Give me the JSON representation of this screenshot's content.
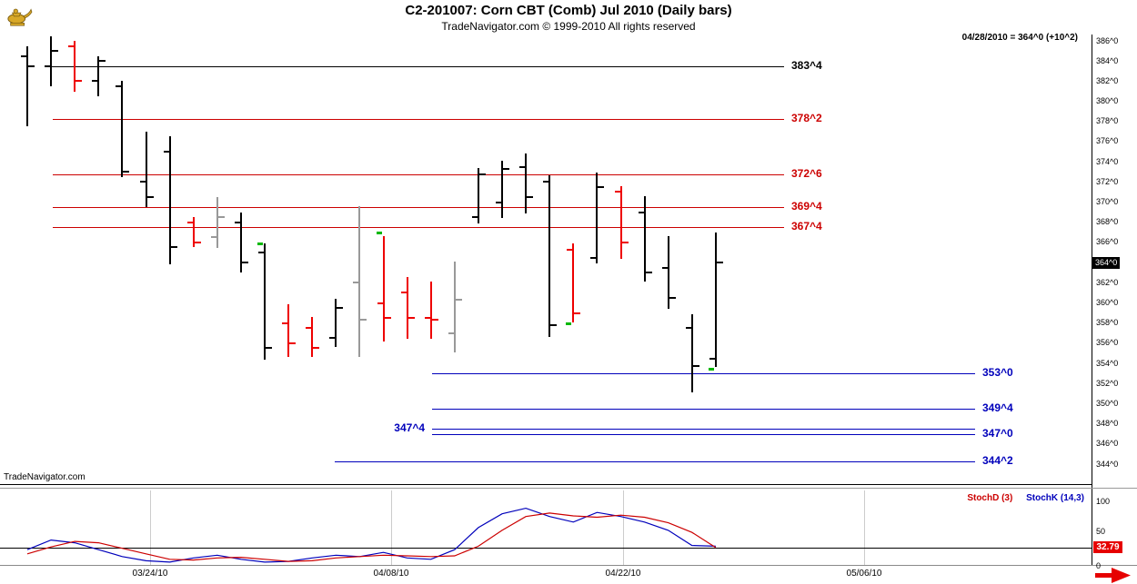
{
  "header": {
    "title": "C2-201007:  Corn CBT (Comb) Jul 2010  (Daily bars)",
    "copyright": "TradeNavigator.com © 1999-2010 All rights reserved",
    "quote": "04/28/2010 = 364^0 (+10^2)"
  },
  "watermark": "TradeNavigator.com",
  "colors": {
    "bar_black": "#000000",
    "bar_red": "#ee0000",
    "bar_gray": "#999999",
    "signal_green": "#00b800",
    "level_black": "#000000",
    "level_red": "#cc0000",
    "level_blue": "#0000bb",
    "stoch_d": "#cc0000",
    "stoch_k": "#0000bb",
    "current_price_bg": "#000000",
    "value_box_bg": "#e60000",
    "arrow_red": "#e60000",
    "logo_gold": "#d8a828"
  },
  "price_axis": {
    "max": 386,
    "min": 344,
    "step": 2,
    "current": "364^0",
    "labels": [
      "386^0",
      "384^0",
      "382^0",
      "380^0",
      "378^0",
      "376^0",
      "374^0",
      "372^0",
      "370^0",
      "368^0",
      "366^0",
      "364^0",
      "362^0",
      "360^0",
      "358^0",
      "356^0",
      "354^0",
      "352^0",
      "350^0",
      "348^0",
      "346^0",
      "344^0"
    ]
  },
  "chart_data": [
    {
      "type": "ohlc-bar",
      "title": "C2-201007 Corn CBT (Comb) Jul 2010 Daily bars",
      "y_axis": {
        "min": 344,
        "max": 386,
        "step": 2
      },
      "x_axis": {
        "tick_labels": [
          "03/24/10",
          "04/08/10",
          "04/22/10",
          "05/06/10"
        ],
        "tick_x": [
          165,
          430,
          685,
          950
        ]
      },
      "levels": [
        {
          "label": "383^4",
          "value": 383.5,
          "color_key": "level_black",
          "side": "right",
          "x1": 55,
          "x2": 862
        },
        {
          "label": "378^2",
          "value": 378.25,
          "color_key": "level_red",
          "side": "right",
          "x1": 58,
          "x2": 862
        },
        {
          "label": "372^6",
          "value": 372.75,
          "color_key": "level_red",
          "side": "right",
          "x1": 58,
          "x2": 862
        },
        {
          "label": "369^4",
          "value": 369.5,
          "color_key": "level_red",
          "side": "right",
          "x1": 58,
          "x2": 862
        },
        {
          "label": "367^4",
          "value": 367.5,
          "color_key": "level_red",
          "side": "right",
          "x1": 58,
          "x2": 862
        },
        {
          "label": "353^0",
          "value": 353.0,
          "color_key": "level_blue",
          "side": "right",
          "x1": 475,
          "x2": 1072
        },
        {
          "label": "349^4",
          "value": 349.5,
          "color_key": "level_blue",
          "side": "right",
          "x1": 475,
          "x2": 1072
        },
        {
          "label": "347^4",
          "value": 347.5,
          "color_key": "level_blue",
          "side": "left",
          "x1": 475,
          "x2": 1072
        },
        {
          "label": "347^0",
          "value": 347.0,
          "color_key": "level_blue",
          "side": "right",
          "x1": 475,
          "x2": 1072
        },
        {
          "label": "344^2",
          "value": 344.25,
          "color_key": "level_blue",
          "side": "right",
          "x1": 368,
          "x2": 1072
        }
      ],
      "bars": [
        {
          "o": 384.5,
          "h": 385.5,
          "l": 377.5,
          "c": 383.5,
          "color": "black"
        },
        {
          "o": 383.5,
          "h": 386.5,
          "l": 381.5,
          "c": 385.0,
          "color": "black"
        },
        {
          "o": 385.5,
          "h": 386.0,
          "l": 381.0,
          "c": 382.0,
          "color": "red"
        },
        {
          "o": 382.0,
          "h": 384.5,
          "l": 380.5,
          "c": 384.0,
          "color": "black"
        },
        {
          "o": 381.5,
          "h": 382.0,
          "l": 372.5,
          "c": 373.0,
          "color": "black"
        },
        {
          "o": 372.0,
          "h": 377.0,
          "l": 369.5,
          "c": 370.5,
          "color": "black"
        },
        {
          "o": 375.0,
          "h": 376.5,
          "l": 363.8,
          "c": 365.5,
          "color": "black"
        },
        {
          "o": 368.0,
          "h": 368.5,
          "l": 365.5,
          "c": 366.0,
          "color": "red"
        },
        {
          "o": 366.5,
          "h": 370.5,
          "l": 365.5,
          "c": 368.5,
          "color": "gray"
        },
        {
          "o": 368.0,
          "h": 369.0,
          "l": 363.0,
          "c": 364.0,
          "color": "black"
        },
        {
          "o": 365.0,
          "h": 365.9,
          "l": 354.4,
          "c": 355.5,
          "color": "black"
        },
        {
          "o": 358.0,
          "h": 359.9,
          "l": 354.6,
          "c": 356.0,
          "color": "red"
        },
        {
          "o": 357.5,
          "h": 358.6,
          "l": 354.6,
          "c": 355.5,
          "color": "red"
        },
        {
          "o": 356.5,
          "h": 360.4,
          "l": 355.6,
          "c": 359.5,
          "color": "black"
        },
        {
          "o": 362.0,
          "h": 369.6,
          "l": 354.6,
          "c": 358.3,
          "color": "gray"
        },
        {
          "o": 360.0,
          "h": 366.6,
          "l": 356.2,
          "c": 358.5,
          "color": "red"
        },
        {
          "o": 361.0,
          "h": 362.6,
          "l": 356.4,
          "c": 358.5,
          "color": "red"
        },
        {
          "o": 358.5,
          "h": 362.1,
          "l": 356.4,
          "c": 358.3,
          "color": "red"
        },
        {
          "o": 357.0,
          "h": 364.1,
          "l": 355.1,
          "c": 360.3,
          "color": "gray"
        },
        {
          "o": 368.5,
          "h": 373.4,
          "l": 367.9,
          "c": 372.8,
          "color": "black"
        },
        {
          "o": 370.0,
          "h": 374.1,
          "l": 368.4,
          "c": 373.3,
          "color": "black"
        },
        {
          "o": 373.5,
          "h": 374.8,
          "l": 368.9,
          "c": 370.5,
          "color": "black"
        },
        {
          "o": 372.0,
          "h": 372.7,
          "l": 356.6,
          "c": 357.8,
          "color": "black"
        },
        {
          "o": 365.3,
          "h": 365.9,
          "l": 358.1,
          "c": 359.0,
          "color": "red"
        },
        {
          "o": 364.5,
          "h": 372.9,
          "l": 363.9,
          "c": 371.5,
          "color": "black"
        },
        {
          "o": 371.0,
          "h": 371.6,
          "l": 364.4,
          "c": 366.0,
          "color": "red"
        },
        {
          "o": 369.0,
          "h": 370.6,
          "l": 362.1,
          "c": 363.0,
          "color": "black"
        },
        {
          "o": 363.5,
          "h": 366.6,
          "l": 359.4,
          "c": 360.5,
          "color": "black"
        },
        {
          "o": 357.5,
          "h": 358.9,
          "l": 351.1,
          "c": 353.75,
          "color": "black"
        },
        {
          "o": 354.5,
          "h": 367.0,
          "l": 353.6,
          "c": 364.0,
          "color": "black"
        }
      ],
      "signals": [
        {
          "bar": 11,
          "price": 365.9
        },
        {
          "bar": 16,
          "price": 366.9
        },
        {
          "bar": 24,
          "price": 357.9
        },
        {
          "bar": 30,
          "price": 353.4
        }
      ]
    },
    {
      "type": "line",
      "title": "Stochastic",
      "y_range": [
        0,
        100
      ],
      "series": [
        {
          "name": "StochD (3)",
          "color_key": "stoch_d",
          "values": [
            24,
            34,
            42,
            40,
            32,
            24,
            16,
            15,
            18,
            19,
            16,
            13,
            14,
            18,
            20,
            22,
            21,
            20,
            21,
            35,
            58,
            78,
            83,
            79,
            77,
            80,
            77,
            69,
            55,
            33
          ]
        },
        {
          "name": "StochK (14,3)",
          "color_key": "stoch_k",
          "values": [
            30,
            44,
            40,
            30,
            20,
            14,
            12,
            18,
            22,
            16,
            12,
            13,
            18,
            22,
            20,
            26,
            18,
            16,
            30,
            62,
            82,
            90,
            78,
            70,
            84,
            78,
            70,
            58,
            36,
            35
          ]
        }
      ]
    }
  ],
  "stoch_panel": {
    "axis_labels": [
      "100",
      "50",
      "0"
    ],
    "current_value": "32.79",
    "reference_value": 32.79
  }
}
